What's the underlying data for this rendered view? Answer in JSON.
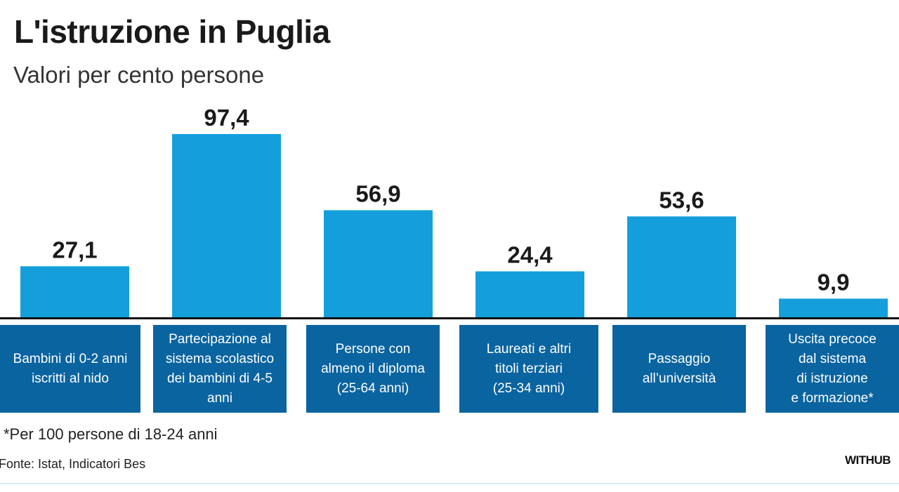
{
  "title": "L'istruzione in Puglia",
  "subtitle": "Valori per cento persone",
  "chart_data": {
    "type": "bar",
    "title": "L'istruzione in Puglia",
    "subtitle": "Valori per cento persone",
    "categories": [
      "Bambini di 0-2 anni\niscritti al nido",
      "Partecipazione al\nsistema scolastico\ndei bambini di 4-5\nanni",
      "Persone con\nalmeno il diploma\n(25-64 anni)",
      "Laureati e altri\ntitoli terziari\n(25-34 anni)",
      "Passaggio\nall’università",
      "Uscita precoce\ndal sistema\ndi istruzione\ne formazione*"
    ],
    "values": [
      27.1,
      97.4,
      56.9,
      24.4,
      53.6,
      9.9
    ],
    "value_labels": [
      "27,1",
      "97,4",
      "56,9",
      "24,4",
      "53,6",
      "9,9"
    ],
    "ylim": [
      0,
      100
    ],
    "grid": false,
    "bar_color": "#149fdc",
    "label_box_color": "#0a64a0"
  },
  "footnote": "*Per 100 persone di 18-24 anni",
  "source": "Fonte:  Istat, Indicatori Bes",
  "brand": "WITHUB"
}
